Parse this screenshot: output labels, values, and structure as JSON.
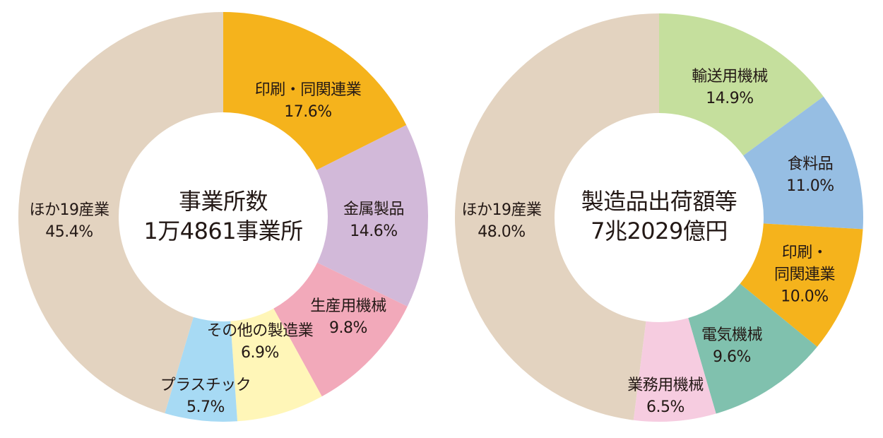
{
  "chart_data": [
    {
      "type": "pie",
      "variant": "donut",
      "title": "事業所数",
      "center_text": [
        "事業所数",
        "1万4861事業所"
      ],
      "unit": "%",
      "start_angle": "12 o'clock, clockwise",
      "categories": [
        "印刷・同関連業",
        "金属製品",
        "生産用機械",
        "その他の製造業",
        "プラスチック",
        "ほか19産業"
      ],
      "values": [
        17.6,
        14.6,
        9.8,
        6.9,
        5.7,
        45.4
      ],
      "labels": [
        "17.6%",
        "14.6%",
        "9.8%",
        "6.9%",
        "5.7%",
        "45.4%"
      ],
      "colors": [
        "#F5B31C",
        "#D2B9D9",
        "#F2A9BA",
        "#FFF6B8",
        "#A7DAF4",
        "#E3D3C0"
      ],
      "legend": "none (labels on segments)"
    },
    {
      "type": "pie",
      "variant": "donut",
      "title": "製造品出荷額等",
      "center_text": [
        "製造品出荷額等",
        "7兆2029億円"
      ],
      "unit": "%",
      "start_angle": "12 o'clock, clockwise",
      "categories": [
        "輸送用機械",
        "食料品",
        "印刷・同関連業",
        "電気機械",
        "業務用機械",
        "ほか19産業"
      ],
      "values": [
        14.9,
        11.0,
        10.0,
        9.6,
        6.5,
        48.0
      ],
      "labels": [
        "14.9%",
        "11.0%",
        "10.0%",
        "9.6%",
        "6.5%",
        "48.0%"
      ],
      "colors": [
        "#C5DF9D",
        "#96BEE3",
        "#F5B31C",
        "#80C1AE",
        "#F6CCE0",
        "#E3D3C0"
      ],
      "legend": "none (labels on segments)"
    }
  ],
  "left": {
    "center": {
      "line1": "事業所数",
      "line2": "1万4861事業所"
    },
    "segments": [
      {
        "name": "印刷・同関連業",
        "pct": "17.6%"
      },
      {
        "name": "金属製品",
        "pct": "14.6%"
      },
      {
        "name": "生産用機械",
        "pct": "9.8%"
      },
      {
        "name": "その他の製造業",
        "pct": "6.9%"
      },
      {
        "name": "プラスチック",
        "pct": "5.7%"
      },
      {
        "name": "ほか19産業",
        "pct": "45.4%"
      }
    ]
  },
  "right": {
    "center": {
      "line1": "製造品出荷額等",
      "line2": "7兆2029億円"
    },
    "segments": [
      {
        "name": "輸送用機械",
        "pct": "14.9%"
      },
      {
        "name": "食料品",
        "pct": "11.0%"
      },
      {
        "name_line1": "印刷・",
        "name_line2": "同関連業",
        "pct": "10.0%"
      },
      {
        "name": "電気機械",
        "pct": "9.6%"
      },
      {
        "name": "業務用機械",
        "pct": "6.5%"
      },
      {
        "name": "ほか19産業",
        "pct": "48.0%"
      }
    ]
  }
}
